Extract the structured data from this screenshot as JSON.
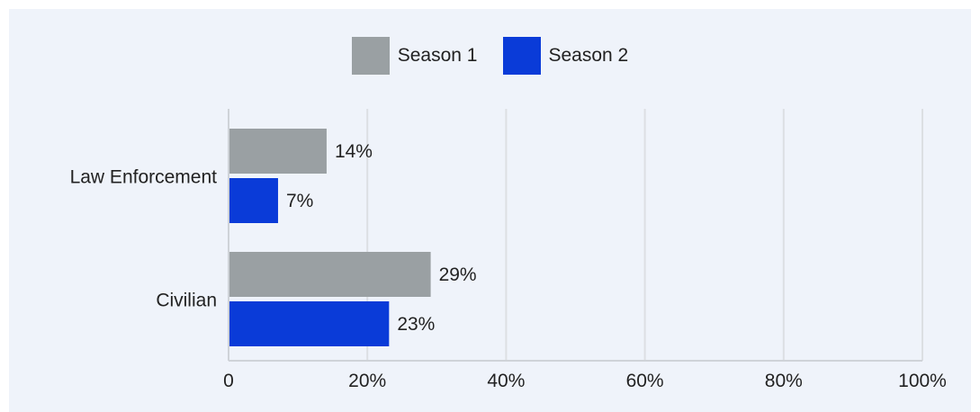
{
  "chart_data": {
    "type": "bar",
    "orientation": "horizontal",
    "categories": [
      "Law Enforcement",
      "Civilian"
    ],
    "series": [
      {
        "name": "Season 1",
        "color": "#9aa0a3",
        "values": [
          14,
          29
        ],
        "labels": [
          "14%",
          "29%"
        ]
      },
      {
        "name": "Season 2",
        "color": "#0a3bd8",
        "values": [
          7,
          23
        ],
        "labels": [
          "7%",
          "23%"
        ]
      }
    ],
    "xlim": [
      0,
      100
    ],
    "x_ticks": [
      0,
      20,
      40,
      60,
      80,
      100
    ],
    "x_tick_labels": [
      "0",
      "20%",
      "40%",
      "60%",
      "80%",
      "100%"
    ],
    "grid": true,
    "legend_position": "top-center",
    "title": "",
    "xlabel": "",
    "ylabel": ""
  }
}
